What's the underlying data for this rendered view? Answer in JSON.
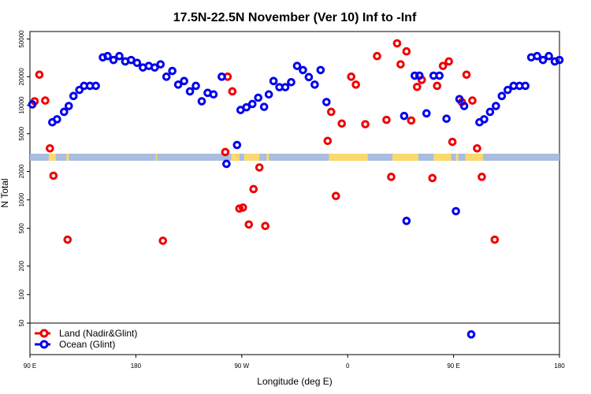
{
  "chart_data": {
    "type": "scatter",
    "title": "17.5N-22.5N November (Ver 10)   Inf to -Inf",
    "xlabel": "Longitude (deg E)",
    "ylabel": "N Total",
    "x_scale": "linear",
    "y_scale": "log",
    "xlim": [
      90,
      540
    ],
    "ylim": [
      50,
      60000
    ],
    "x_ticks": [
      {
        "value": 90,
        "label": "90 E"
      },
      {
        "value": 180,
        "label": "180"
      },
      {
        "value": 270,
        "label": "90 W"
      },
      {
        "value": 360,
        "label": "0"
      },
      {
        "value": 450,
        "label": "90 E"
      },
      {
        "value": 540,
        "label": "180"
      }
    ],
    "y_ticks": [
      {
        "value": 50,
        "label": "50"
      },
      {
        "value": 100,
        "label": "100"
      },
      {
        "value": 200,
        "label": "200"
      },
      {
        "value": 500,
        "label": "500"
      },
      {
        "value": 1000,
        "label": "1000"
      },
      {
        "value": 2000,
        "label": "2000"
      },
      {
        "value": 5000,
        "label": "5000"
      },
      {
        "value": 10000,
        "label": "10000"
      },
      {
        "value": 20000,
        "label": "20000"
      },
      {
        "value": 50000,
        "label": "50000"
      }
    ],
    "legend_position": "bottom-left",
    "series": [
      {
        "name": "Land (Nadir&Glint)",
        "color": "#ee0000",
        "marker": "open-circle",
        "points": [
          [
            94,
            11000
          ],
          [
            98,
            21000
          ],
          [
            103,
            11200
          ],
          [
            107,
            3500
          ],
          [
            110,
            1800
          ],
          [
            122,
            380
          ],
          [
            203,
            370
          ],
          [
            256,
            3200
          ],
          [
            258,
            20000
          ],
          [
            262,
            14000
          ],
          [
            268,
            810
          ],
          [
            271,
            830
          ],
          [
            276,
            550
          ],
          [
            280,
            1300
          ],
          [
            285,
            2200
          ],
          [
            290,
            530
          ],
          [
            343,
            4200
          ],
          [
            346,
            8500
          ],
          [
            350,
            1100
          ],
          [
            355,
            6400
          ],
          [
            363,
            20000
          ],
          [
            367,
            16500
          ],
          [
            375,
            6300
          ],
          [
            385,
            33000
          ],
          [
            393,
            7000
          ],
          [
            397,
            1750
          ],
          [
            402,
            45000
          ],
          [
            405,
            27000
          ],
          [
            410,
            37000
          ],
          [
            414,
            6900
          ],
          [
            419,
            15600
          ],
          [
            423,
            18500
          ],
          [
            432,
            1700
          ],
          [
            436,
            16000
          ],
          [
            441,
            26000
          ],
          [
            446,
            29000
          ],
          [
            449,
            4100
          ],
          [
            457,
            10800
          ],
          [
            461,
            21000
          ],
          [
            466,
            11200
          ],
          [
            470,
            3500
          ],
          [
            474,
            1750
          ],
          [
            485,
            380
          ]
        ]
      },
      {
        "name": "Ocean (Glint)",
        "color": "#0000ee",
        "marker": "open-circle",
        "points": [
          [
            92,
            10200
          ],
          [
            109,
            6600
          ],
          [
            113,
            7100
          ],
          [
            119,
            8500
          ],
          [
            123,
            9800
          ],
          [
            127,
            12500
          ],
          [
            132,
            14500
          ],
          [
            136,
            16000
          ],
          [
            141,
            16000
          ],
          [
            146,
            16000
          ],
          [
            152,
            32000
          ],
          [
            156,
            33000
          ],
          [
            161,
            30000
          ],
          [
            166,
            33000
          ],
          [
            171,
            29000
          ],
          [
            176,
            30000
          ],
          [
            181,
            28000
          ],
          [
            186,
            25000
          ],
          [
            191,
            26000
          ],
          [
            196,
            25000
          ],
          [
            201,
            27000
          ],
          [
            206,
            20000
          ],
          [
            211,
            23000
          ],
          [
            216,
            16500
          ],
          [
            221,
            18000
          ],
          [
            226,
            14000
          ],
          [
            231,
            16000
          ],
          [
            236,
            11000
          ],
          [
            241,
            13500
          ],
          [
            246,
            13000
          ],
          [
            253,
            20000
          ],
          [
            257,
            2400
          ],
          [
            266,
            3800
          ],
          [
            269,
            8900
          ],
          [
            274,
            9500
          ],
          [
            279,
            10300
          ],
          [
            284,
            12000
          ],
          [
            289,
            9600
          ],
          [
            293,
            13000
          ],
          [
            297,
            18000
          ],
          [
            302,
            15500
          ],
          [
            307,
            15500
          ],
          [
            312,
            17500
          ],
          [
            317,
            26000
          ],
          [
            322,
            23500
          ],
          [
            327,
            19800
          ],
          [
            332,
            16500
          ],
          [
            337,
            23500
          ],
          [
            342,
            10800
          ],
          [
            408,
            7700
          ],
          [
            410,
            600
          ],
          [
            417,
            20500
          ],
          [
            421,
            20500
          ],
          [
            427,
            8200
          ],
          [
            433,
            20500
          ],
          [
            438,
            20500
          ],
          [
            444,
            7200
          ],
          [
            452,
            760
          ],
          [
            455,
            11600
          ],
          [
            459,
            9800
          ],
          [
            472,
            6600
          ],
          [
            476,
            7100
          ],
          [
            481,
            8500
          ],
          [
            486,
            9800
          ],
          [
            491,
            12500
          ],
          [
            496,
            14500
          ],
          [
            501,
            16000
          ],
          [
            506,
            16000
          ],
          [
            511,
            16000
          ],
          [
            516,
            32000
          ],
          [
            521,
            33000
          ],
          [
            526,
            30000
          ],
          [
            531,
            33000
          ],
          [
            536,
            29000
          ],
          [
            540,
            30000
          ],
          [
            465,
            38
          ]
        ]
      }
    ],
    "landmask_strip": {
      "ocean_color": "#a8bde0",
      "land_color": "#fcd96c",
      "land_ranges": [
        [
          106,
          112
        ],
        [
          121,
          123
        ],
        [
          197,
          198
        ],
        [
          261,
          268
        ],
        [
          272,
          285
        ],
        [
          291,
          293
        ],
        [
          344,
          377
        ],
        [
          398,
          420
        ],
        [
          433,
          448
        ],
        [
          452,
          454
        ],
        [
          460,
          475
        ]
      ]
    }
  }
}
